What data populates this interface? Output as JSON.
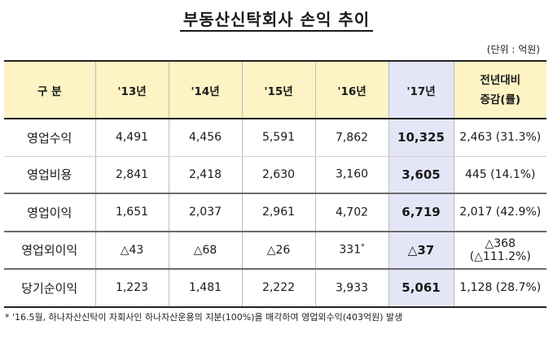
{
  "title": "부동산신탁회사 손익 추이",
  "unit": "(단위 : 억원)",
  "table": {
    "headers": [
      "구 분",
      "'13년",
      "'14년",
      "'15년",
      "'16년",
      "'17년"
    ],
    "change_header_line1": "전년대비",
    "change_header_line2": "증감(률)",
    "rows": [
      {
        "label": "영업수익",
        "y13": "4,491",
        "y14": "4,456",
        "y15": "5,591",
        "y16": "7,862",
        "y16_mark": "",
        "y17": "10,325",
        "change": "2,463 (31.3%)"
      },
      {
        "label": "영업비용",
        "y13": "2,841",
        "y14": "2,418",
        "y15": "2,630",
        "y16": "3,160",
        "y16_mark": "",
        "y17": "3,605",
        "change": "445 (14.1%)"
      },
      {
        "label": "영업이익",
        "y13": "1,651",
        "y14": "2,037",
        "y15": "2,961",
        "y16": "4,702",
        "y16_mark": "",
        "y17": "6,719",
        "change": "2,017 (42.9%)"
      },
      {
        "label": "영업외이익",
        "y13": "△43",
        "y14": "△68",
        "y15": "△26",
        "y16": "331",
        "y16_mark": "*",
        "y17": "△37",
        "change": "△368 (△111.2%)"
      },
      {
        "label": "당기순이익",
        "y13": "1,223",
        "y14": "1,481",
        "y15": "2,222",
        "y16": "3,933",
        "y16_mark": "",
        "y17": "5,061",
        "change": "1,128 (28.7%)"
      }
    ]
  },
  "footnote": "* '16.5월, 하나자산신탁이 자회사인 하나자산운용의 지분(100%)을 매각하여 영업외수익(403억원) 발생",
  "colors": {
    "header_bg": "#fdf3c4",
    "highlight_bg": "#e4e6f7"
  }
}
